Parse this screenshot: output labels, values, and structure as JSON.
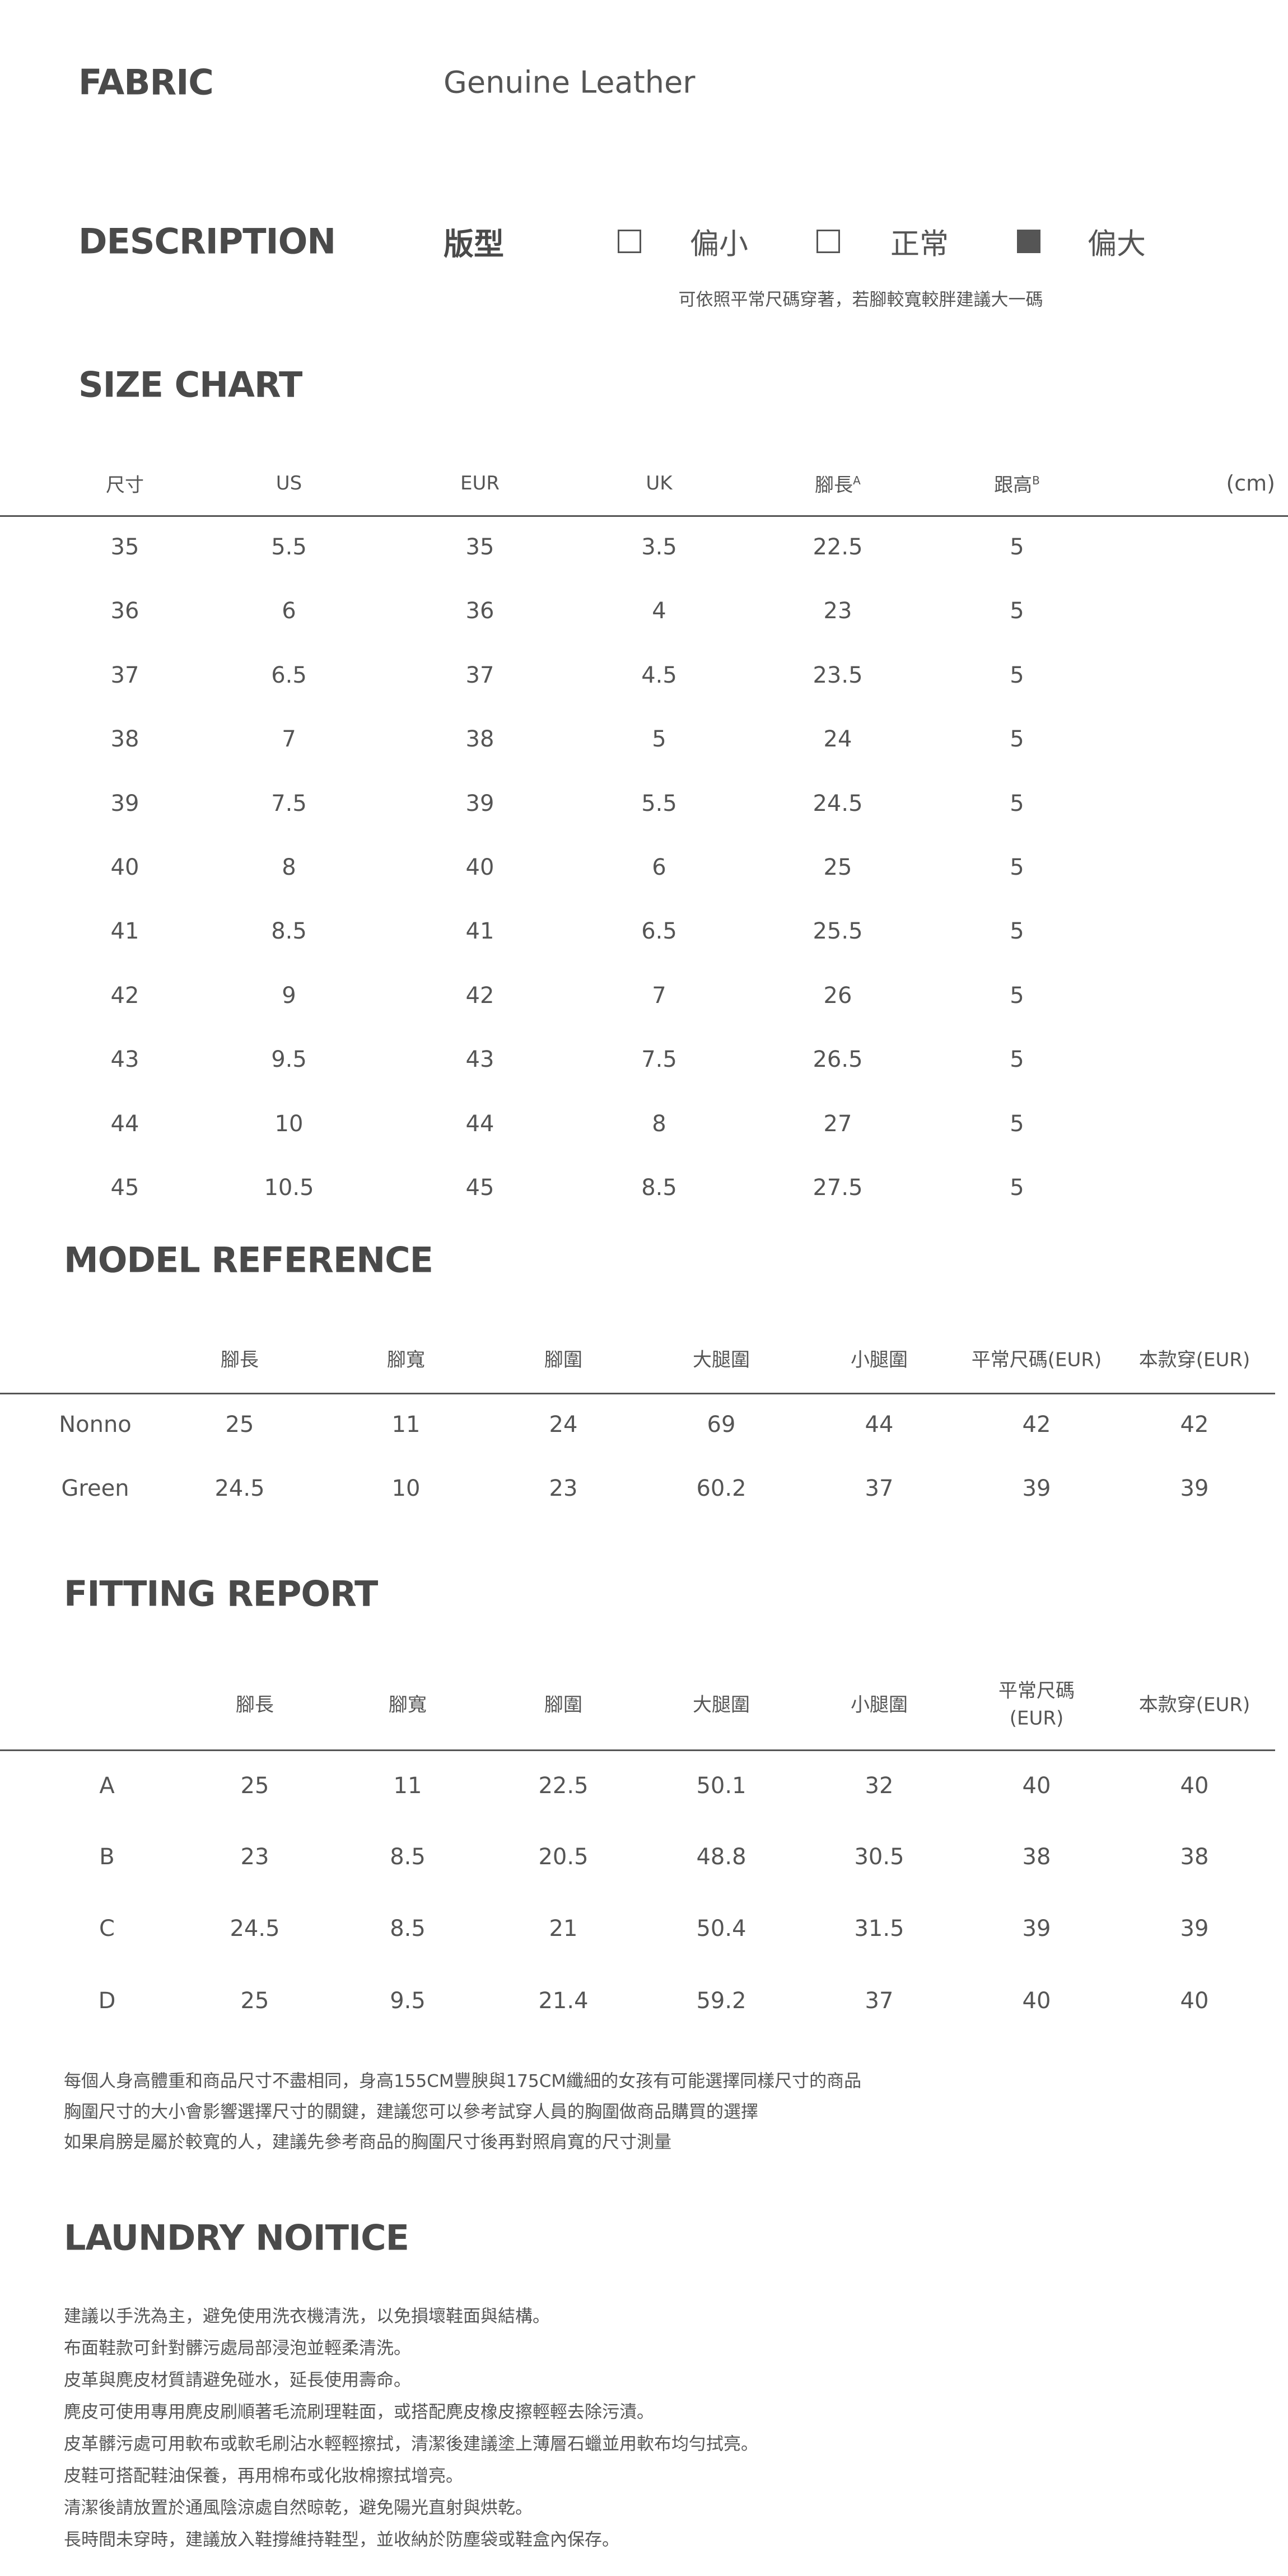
{
  "fabric": {
    "label": "FABRIC",
    "value": "Genuine Leather"
  },
  "description": {
    "label": "DESCRIPTION",
    "fit_label": "版型",
    "options": [
      {
        "label": "偏小",
        "checked": false
      },
      {
        "label": "正常",
        "checked": false
      },
      {
        "label": "偏大",
        "checked": true
      }
    ],
    "note": "可依照平常尺碼穿著，若腳較寬較胖建議大一碼"
  },
  "size_chart": {
    "title": "SIZE CHART",
    "unit": "(cm)",
    "headers": [
      "尺寸",
      "US",
      "EUR",
      "UK",
      "腳長",
      "跟高"
    ],
    "header_sups": [
      "",
      "",
      "",
      "",
      "A",
      "B"
    ],
    "rows": [
      [
        "35",
        "5.5",
        "35",
        "3.5",
        "22.5",
        "5"
      ],
      [
        "36",
        "6",
        "36",
        "4",
        "23",
        "5"
      ],
      [
        "37",
        "6.5",
        "37",
        "4.5",
        "23.5",
        "5"
      ],
      [
        "38",
        "7",
        "38",
        "5",
        "24",
        "5"
      ],
      [
        "39",
        "7.5",
        "39",
        "5.5",
        "24.5",
        "5"
      ],
      [
        "40",
        "8",
        "40",
        "6",
        "25",
        "5"
      ],
      [
        "41",
        "8.5",
        "41",
        "6.5",
        "25.5",
        "5"
      ],
      [
        "42",
        "9",
        "42",
        "7",
        "26",
        "5"
      ],
      [
        "43",
        "9.5",
        "43",
        "7.5",
        "26.5",
        "5"
      ],
      [
        "44",
        "10",
        "44",
        "8",
        "27",
        "5"
      ],
      [
        "45",
        "10.5",
        "45",
        "8.5",
        "27.5",
        "5"
      ]
    ]
  },
  "model_reference": {
    "title": "MODEL REFERENCE",
    "headers": [
      "",
      "腳長",
      "腳寬",
      "腳圍",
      "大腿圍",
      "小腿圍",
      "平常尺碼(EUR)",
      "本款穿(EUR)"
    ],
    "rows": [
      [
        "Nonno",
        "25",
        "11",
        "24",
        "69",
        "44",
        "42",
        "42"
      ],
      [
        "Green",
        "24.5",
        "10",
        "23",
        "60.2",
        "37",
        "39",
        "39"
      ]
    ]
  },
  "fitting_report": {
    "title": "FITTING REPORT",
    "headers": [
      "",
      "腳長",
      "腳寬",
      "腳圍",
      "大腿圍",
      "小腿圍",
      "平常尺碼\n(EUR)",
      "本款穿(EUR)"
    ],
    "rows": [
      [
        "A",
        "25",
        "11",
        "22.5",
        "50.1",
        "32",
        "40",
        "40"
      ],
      [
        "B",
        "23",
        "8.5",
        "20.5",
        "48.8",
        "30.5",
        "38",
        "38"
      ],
      [
        "C",
        "24.5",
        "8.5",
        "21",
        "50.4",
        "31.5",
        "39",
        "39"
      ],
      [
        "D",
        "25",
        "9.5",
        "21.4",
        "59.2",
        "37",
        "40",
        "40"
      ]
    ],
    "notes": [
      "每個人身高體重和商品尺寸不盡相同，身高155CM豐腴與175CM纖細的女孩有可能選擇同樣尺寸的商品",
      "胸圍尺寸的大小會影響選擇尺寸的關鍵，建議您可以參考試穿人員的胸圍做商品購買的選擇",
      "如果肩膀是屬於較寬的人，建議先參考商品的胸圍尺寸後再對照肩寬的尺寸測量"
    ]
  },
  "laundry": {
    "title": "LAUNDRY NOITICE",
    "lines": [
      "建議以手洗為主，避免使用洗衣機清洗，以免損壞鞋面與結構。",
      "布面鞋款可針對髒污處局部浸泡並輕柔清洗。",
      "皮革與麂皮材質請避免碰水，延長使用壽命。",
      "麂皮可使用專用麂皮刷順著毛流刷理鞋面，或搭配麂皮橡皮擦輕輕去除污漬。",
      "皮革髒污處可用軟布或軟毛刷沾水輕輕擦拭，清潔後建議塗上薄層石蠟並用軟布均勻拭亮。",
      "皮鞋可搭配鞋油保養，再用棉布或化妝棉擦拭增亮。",
      "清潔後請放置於通風陰涼處自然晾乾，避免陽光直射與烘乾。",
      "長時間未穿時，建議放入鞋撐維持鞋型，並收納於防塵袋或鞋盒內保存。"
    ]
  }
}
